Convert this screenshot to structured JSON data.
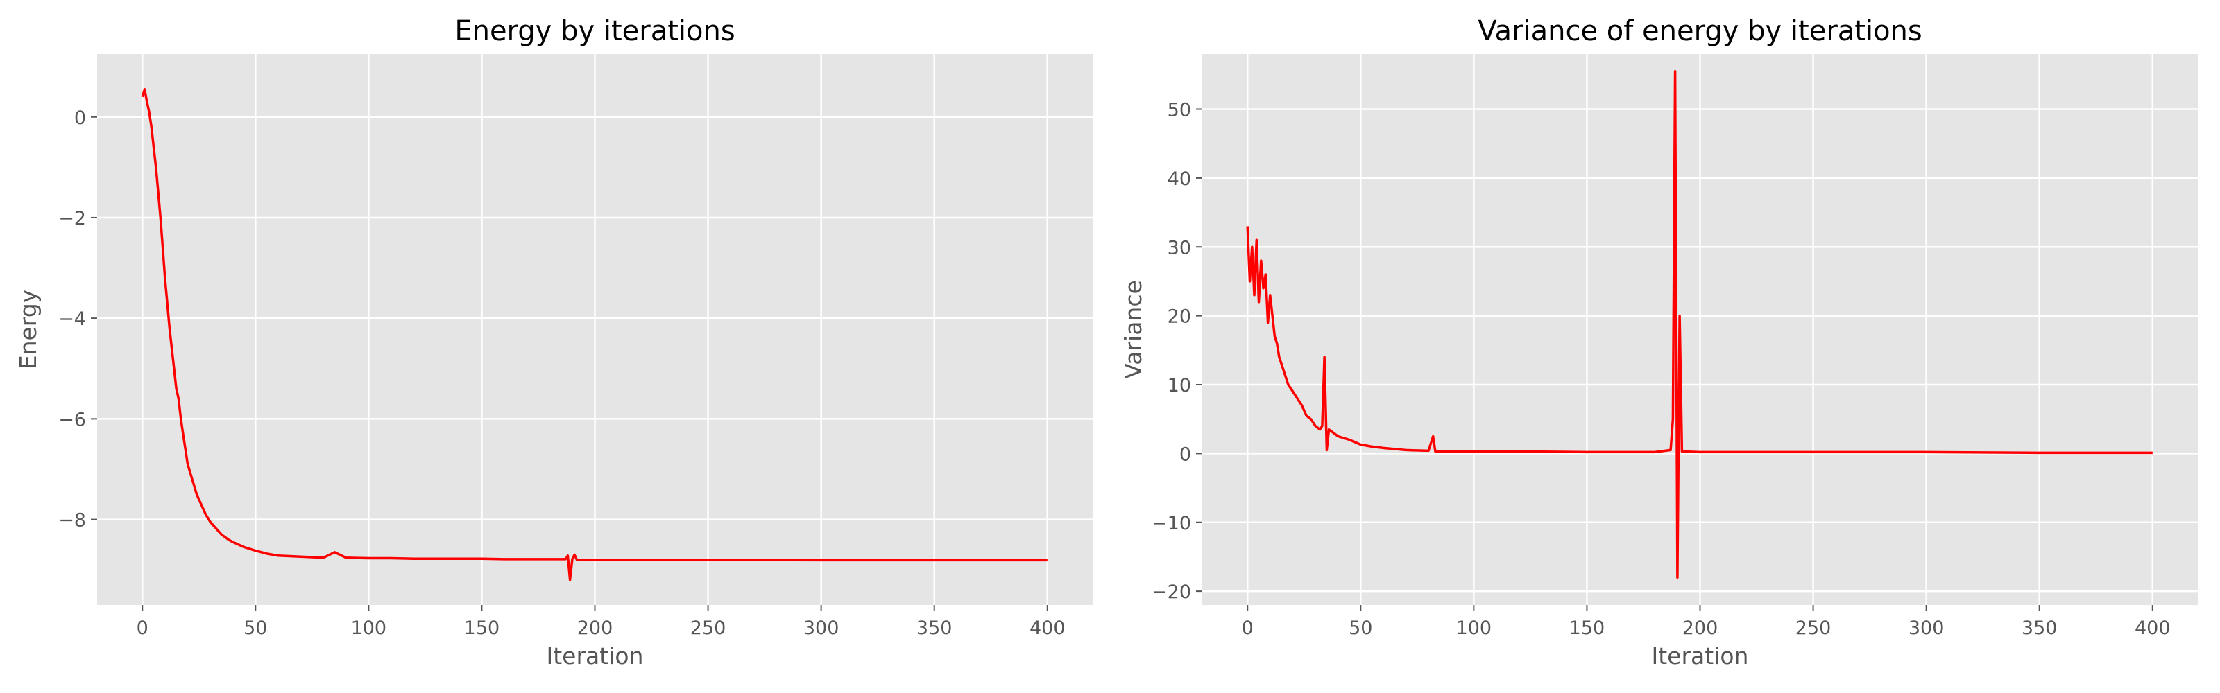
{
  "chart_data": [
    {
      "type": "line",
      "title": "Energy by iterations",
      "xlabel": "Iteration",
      "ylabel": "Energy",
      "xlim": [
        -20,
        420
      ],
      "ylim": [
        -9.7,
        1.25
      ],
      "xticks": [
        0,
        50,
        100,
        150,
        200,
        250,
        300,
        350,
        400
      ],
      "yticks": [
        0,
        -2,
        -4,
        -6,
        -8
      ],
      "grid": true,
      "color": "#ff0000",
      "series": [
        {
          "x": [
            0,
            1,
            2,
            3,
            4,
            5,
            6,
            7,
            8,
            9,
            10,
            11,
            12,
            13,
            14,
            15,
            16,
            17,
            18,
            19,
            20,
            22,
            24,
            26,
            28,
            30,
            32,
            35,
            38,
            40,
            45,
            50,
            55,
            60,
            70,
            80,
            85,
            90,
            100,
            110,
            120,
            130,
            140,
            150,
            160,
            170,
            180,
            187,
            188,
            189,
            190,
            191,
            192,
            200,
            220,
            250,
            300,
            350,
            400
          ],
          "y": [
            0.4,
            0.55,
            0.3,
            0.1,
            -0.2,
            -0.6,
            -1.0,
            -1.5,
            -2.0,
            -2.6,
            -3.2,
            -3.7,
            -4.2,
            -4.6,
            -5.0,
            -5.4,
            -5.6,
            -6.0,
            -6.3,
            -6.6,
            -6.9,
            -7.2,
            -7.5,
            -7.7,
            -7.9,
            -8.05,
            -8.15,
            -8.3,
            -8.4,
            -8.45,
            -8.55,
            -8.62,
            -8.68,
            -8.72,
            -8.74,
            -8.76,
            -8.65,
            -8.76,
            -8.77,
            -8.77,
            -8.78,
            -8.78,
            -8.78,
            -8.78,
            -8.79,
            -8.79,
            -8.79,
            -8.79,
            -8.72,
            -9.2,
            -8.79,
            -8.7,
            -8.8,
            -8.8,
            -8.8,
            -8.8,
            -8.81,
            -8.81,
            -8.81
          ]
        }
      ]
    },
    {
      "type": "line",
      "title": "Variance of energy by iterations",
      "xlabel": "Iteration",
      "ylabel": "Variance",
      "xlim": [
        -20,
        420
      ],
      "ylim": [
        -22,
        58
      ],
      "xticks": [
        0,
        50,
        100,
        150,
        200,
        250,
        300,
        350,
        400
      ],
      "yticks": [
        -20,
        -10,
        0,
        10,
        20,
        30,
        40,
        50
      ],
      "grid": true,
      "color": "#ff0000",
      "series": [
        {
          "x": [
            0,
            1,
            2,
            3,
            4,
            5,
            6,
            7,
            8,
            9,
            10,
            11,
            12,
            13,
            14,
            16,
            18,
            20,
            22,
            24,
            26,
            28,
            30,
            32,
            33,
            34,
            35,
            36,
            38,
            40,
            45,
            50,
            55,
            60,
            70,
            80,
            82,
            83,
            90,
            100,
            120,
            150,
            180,
            187,
            188,
            189,
            190,
            191,
            192,
            200,
            220,
            250,
            300,
            350,
            400
          ],
          "y": [
            33,
            25,
            30,
            23,
            31,
            22,
            28,
            24,
            26,
            19,
            23,
            20,
            17,
            16,
            14,
            12,
            10,
            9,
            8,
            7,
            5.5,
            5,
            4,
            3.5,
            4,
            14,
            0.5,
            3.5,
            3,
            2.5,
            2,
            1.3,
            1,
            0.8,
            0.5,
            0.4,
            2.5,
            0.3,
            0.3,
            0.3,
            0.3,
            0.2,
            0.2,
            0.5,
            5,
            55.5,
            -18,
            20,
            0.3,
            0.2,
            0.2,
            0.2,
            0.2,
            0.1,
            0.1
          ]
        }
      ]
    }
  ]
}
